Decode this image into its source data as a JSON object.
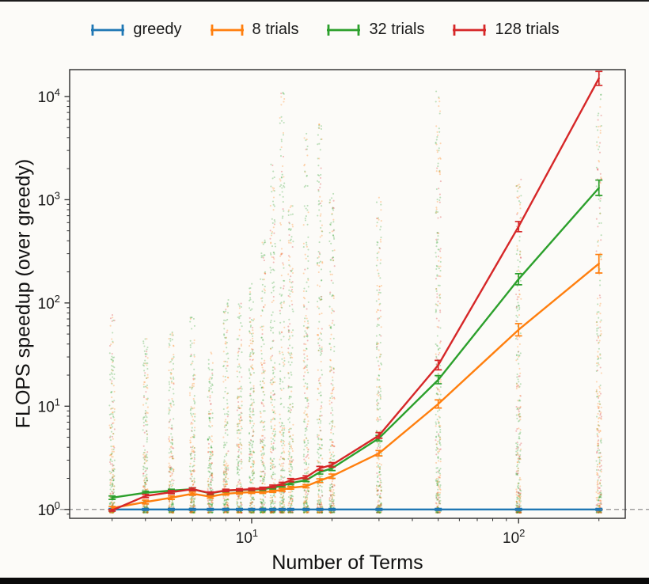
{
  "legend": {
    "items": [
      {
        "label": "greedy",
        "color": "#1f77b4"
      },
      {
        "label": "8 trials",
        "color": "#ff7f0e"
      },
      {
        "label": "32 trials",
        "color": "#2ca02c"
      },
      {
        "label": "128 trials",
        "color": "#d62728"
      }
    ]
  },
  "chart_data": {
    "type": "line",
    "title": "",
    "xlabel": "Number of Terms",
    "ylabel": "FLOPS speedup (over greedy)",
    "x_scale": "log",
    "y_scale": "log",
    "xlim": [
      2.08,
      251
    ],
    "ylim": [
      0.82,
      18200
    ],
    "x_ticks": [
      10,
      100
    ],
    "y_ticks": [
      1,
      10,
      100,
      1000,
      10000
    ],
    "x_minor_ticks": [
      3,
      4,
      5,
      6,
      7,
      8,
      9,
      20,
      30,
      40,
      50,
      60,
      70,
      80,
      90,
      200
    ],
    "baseline": {
      "y": 1.0,
      "style": "dashed",
      "color": "#909090"
    },
    "grid": false,
    "legend_position": "top-center",
    "x": [
      3,
      4,
      5,
      6,
      7,
      8,
      9,
      10,
      11,
      12,
      13,
      14,
      16,
      18,
      20,
      30,
      50,
      100,
      200
    ],
    "series": [
      {
        "name": "greedy",
        "color": "#1f77b4",
        "values": [
          1,
          1,
          1,
          1,
          1,
          1,
          1,
          1,
          1,
          1,
          1,
          1,
          1,
          1,
          1,
          1,
          1,
          1,
          1
        ],
        "err_lo": [
          0.98,
          0.98,
          0.98,
          0.98,
          0.98,
          0.98,
          0.98,
          0.98,
          0.98,
          0.98,
          0.98,
          0.98,
          0.98,
          0.98,
          0.98,
          0.98,
          0.98,
          0.98,
          0.98
        ],
        "err_hi": [
          1.02,
          1.02,
          1.02,
          1.02,
          1.02,
          1.02,
          1.02,
          1.02,
          1.02,
          1.02,
          1.02,
          1.02,
          1.02,
          1.02,
          1.02,
          1.02,
          1.02,
          1.02,
          1.02
        ]
      },
      {
        "name": "8 trials",
        "color": "#ff7f0e",
        "values": [
          1.03,
          1.18,
          1.3,
          1.42,
          1.33,
          1.42,
          1.45,
          1.47,
          1.47,
          1.5,
          1.55,
          1.62,
          1.68,
          1.9,
          2.1,
          3.5,
          10.5,
          55,
          240
        ],
        "err_lo": [
          0.99,
          1.13,
          1.25,
          1.37,
          1.29,
          1.38,
          1.41,
          1.43,
          1.43,
          1.46,
          1.5,
          1.57,
          1.62,
          1.82,
          2.0,
          3.3,
          9.6,
          48,
          195
        ],
        "err_hi": [
          1.07,
          1.23,
          1.35,
          1.47,
          1.37,
          1.46,
          1.49,
          1.51,
          1.51,
          1.54,
          1.6,
          1.67,
          1.74,
          1.98,
          2.2,
          3.72,
          11.5,
          63,
          295
        ]
      },
      {
        "name": "32 trials",
        "color": "#2ca02c",
        "values": [
          1.3,
          1.45,
          1.52,
          1.57,
          1.43,
          1.52,
          1.54,
          1.56,
          1.57,
          1.62,
          1.7,
          1.8,
          1.92,
          2.3,
          2.5,
          4.9,
          18,
          170,
          1300
        ],
        "err_lo": [
          1.25,
          1.4,
          1.47,
          1.52,
          1.39,
          1.48,
          1.5,
          1.52,
          1.53,
          1.58,
          1.65,
          1.74,
          1.86,
          2.2,
          2.38,
          4.6,
          16.5,
          150,
          1100
        ],
        "err_hi": [
          1.35,
          1.5,
          1.57,
          1.62,
          1.47,
          1.56,
          1.58,
          1.6,
          1.61,
          1.66,
          1.75,
          1.86,
          1.98,
          2.4,
          2.62,
          5.2,
          19.8,
          192,
          1550
        ]
      },
      {
        "name": "128 trials",
        "color": "#d62728",
        "values": [
          0.98,
          1.35,
          1.47,
          1.57,
          1.44,
          1.53,
          1.55,
          1.57,
          1.6,
          1.67,
          1.77,
          1.92,
          2.05,
          2.5,
          2.7,
          5.2,
          25,
          550,
          15000
        ],
        "err_lo": [
          0.96,
          1.3,
          1.42,
          1.52,
          1.4,
          1.49,
          1.51,
          1.53,
          1.56,
          1.62,
          1.71,
          1.85,
          1.98,
          2.39,
          2.57,
          4.9,
          22.5,
          490,
          12800
        ],
        "err_hi": [
          1.0,
          1.4,
          1.52,
          1.62,
          1.48,
          1.57,
          1.59,
          1.61,
          1.64,
          1.72,
          1.83,
          1.99,
          2.12,
          2.61,
          2.84,
          5.55,
          27.8,
          615,
          17500
        ]
      }
    ],
    "scatter": {
      "alpha": 0.3,
      "radius": 1.05,
      "colors": [
        "#2ca02c",
        "#ff7f0e",
        "#d62728"
      ],
      "default_mix": [
        0.55,
        0.33,
        0.12
      ],
      "min_value": 0.93,
      "columns": [
        {
          "x": 3,
          "max": 80,
          "n": 240
        },
        {
          "x": 4,
          "max": 45,
          "n": 240
        },
        {
          "x": 5,
          "max": 55,
          "n": 240
        },
        {
          "x": 6,
          "max": 75,
          "n": 240
        },
        {
          "x": 7,
          "max": 35,
          "n": 220
        },
        {
          "x": 8,
          "max": 110,
          "n": 240
        },
        {
          "x": 9,
          "max": 100,
          "n": 240
        },
        {
          "x": 10,
          "max": 160,
          "n": 260
        },
        {
          "x": 11,
          "max": 420,
          "n": 260
        },
        {
          "x": 12,
          "max": 2200,
          "n": 280
        },
        {
          "x": 13,
          "max": 11000,
          "n": 280
        },
        {
          "x": 14,
          "max": 900,
          "n": 260
        },
        {
          "x": 16,
          "max": 4500,
          "n": 280
        },
        {
          "x": 18,
          "max": 5500,
          "n": 280
        },
        {
          "x": 20,
          "max": 1200,
          "n": 260
        },
        {
          "x": 30,
          "max": 1100,
          "n": 280
        },
        {
          "x": 50,
          "max": 12000,
          "n": 320,
          "mix": [
            0.55,
            0.3,
            0.15
          ]
        },
        {
          "x": 100,
          "max": 1600,
          "n": 320,
          "mix": [
            0.5,
            0.28,
            0.22
          ]
        },
        {
          "x": 200,
          "max": 17000,
          "n": 340,
          "mix": [
            0.35,
            0.4,
            0.25
          ]
        }
      ]
    }
  }
}
